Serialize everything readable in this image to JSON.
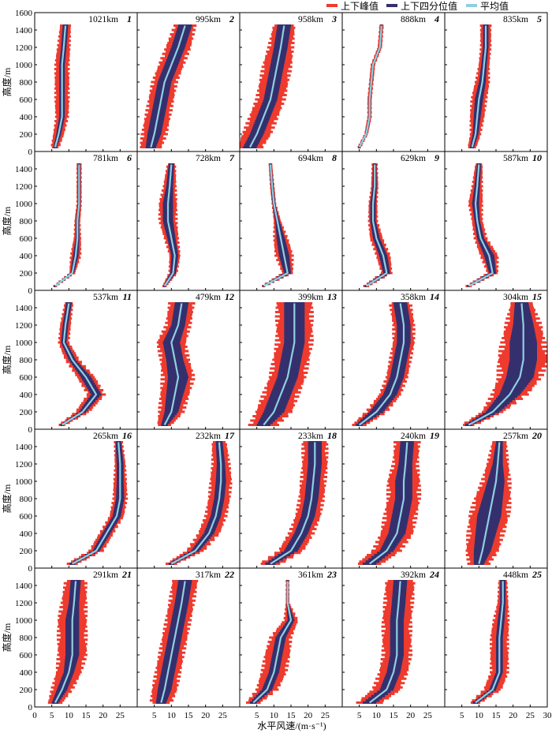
{
  "chart_data": {
    "type": "profile-grid",
    "legend": [
      {
        "key": "peak",
        "label": "上下峰值",
        "color": "#ee3b2e"
      },
      {
        "key": "quartile",
        "label": "上下四分位值",
        "color": "#34306e"
      },
      {
        "key": "mean",
        "label": "平均值",
        "color": "#8fd0e0"
      }
    ],
    "xlabel": "水平风速/(m·s⁻¹)",
    "ylabel": "高度/m",
    "xlim": [
      0,
      30
    ],
    "ylim": [
      0,
      1600
    ],
    "xticks": [
      "0",
      "5",
      "10",
      "15",
      "20",
      "25",
      "5",
      "10",
      "15",
      "20",
      "25",
      "5",
      "10",
      "15",
      "20",
      "25",
      "5",
      "10",
      "15",
      "20",
      "25",
      "5",
      "10",
      "15",
      "20",
      "25",
      "30"
    ],
    "yticks": [
      "0",
      "200",
      "400",
      "600",
      "800",
      "1000",
      "1200",
      "1400",
      "1600"
    ],
    "heights": [
      50,
      200,
      400,
      600,
      800,
      1000,
      1200,
      1450
    ],
    "panels": [
      {
        "id": "1",
        "distance": "1021km",
        "mean": [
          6,
          7,
          8,
          8,
          8,
          8,
          8.5,
          9
        ],
        "q_half": [
          0.5,
          0.7,
          0.8,
          0.8,
          0.8,
          0.8,
          0.8,
          0.8
        ],
        "p_half": [
          1.2,
          1.5,
          1.8,
          2,
          2,
          2,
          1.8,
          1.5
        ]
      },
      {
        "id": "2",
        "distance": "995km",
        "mean": [
          4,
          5,
          6,
          7,
          8,
          10,
          12,
          14
        ],
        "q_half": [
          1.5,
          2,
          2,
          2,
          2,
          2,
          2,
          2
        ],
        "p_half": [
          3,
          3.5,
          3.5,
          3.5,
          3.5,
          3.5,
          3.5,
          3
        ]
      },
      {
        "id": "3",
        "distance": "958km",
        "mean": [
          3,
          5,
          7,
          9,
          10,
          11,
          12,
          13
        ],
        "q_half": [
          2,
          2,
          2,
          2,
          2,
          2,
          2,
          2
        ],
        "p_half": [
          3.5,
          4,
          4,
          4,
          4,
          4,
          3.5,
          3
        ]
      },
      {
        "id": "4",
        "distance": "888km",
        "mean": [
          5,
          7,
          8,
          8,
          8.5,
          9,
          11,
          11.5
        ],
        "q_half": [
          0.3,
          0.3,
          0.3,
          0.3,
          0.3,
          0.3,
          0.3,
          0.3
        ],
        "p_half": [
          0.5,
          0.5,
          0.6,
          0.6,
          0.6,
          0.6,
          0.6,
          0.6
        ]
      },
      {
        "id": "5",
        "distance": "835km",
        "mean": [
          8,
          9,
          9.5,
          10,
          11,
          11.5,
          12,
          12
        ],
        "q_half": [
          0.6,
          0.8,
          1,
          1.2,
          1,
          0.8,
          0.8,
          0.8
        ],
        "p_half": [
          1.2,
          1.5,
          2,
          2.2,
          2,
          1.5,
          1.5,
          1.5
        ]
      },
      {
        "id": "6",
        "distance": "781km",
        "mean": [
          6,
          11,
          12,
          12.5,
          12.5,
          13,
          13,
          13
        ],
        "q_half": [
          0.3,
          0.5,
          0.8,
          0.5,
          0.4,
          0.4,
          0.4,
          0.4
        ],
        "p_half": [
          0.5,
          0.8,
          1.5,
          1,
          0.8,
          0.7,
          0.7,
          0.7
        ]
      },
      {
        "id": "7",
        "distance": "728km",
        "mean": [
          8,
          10.5,
          11,
          10,
          9,
          9,
          9.5,
          10
        ],
        "q_half": [
          0.3,
          0.8,
          1,
          1.2,
          1.5,
          1.5,
          1,
          0.8
        ],
        "p_half": [
          0.6,
          1.2,
          1.5,
          2,
          2.5,
          2.5,
          1.8,
          1.2
        ]
      },
      {
        "id": "8",
        "distance": "694km",
        "mean": [
          7,
          14,
          13,
          12,
          11,
          10,
          9.5,
          9
        ],
        "q_half": [
          0.3,
          1,
          1.5,
          1.2,
          0.6,
          0.4,
          0.4,
          0.3
        ],
        "p_half": [
          0.6,
          1.5,
          2.5,
          2,
          1,
          0.6,
          0.6,
          0.5
        ]
      },
      {
        "id": "9",
        "distance": "629km",
        "mean": [
          7,
          13,
          12,
          10,
          9,
          9,
          9.5,
          9.5
        ],
        "q_half": [
          0.4,
          1,
          1.2,
          1,
          0.8,
          0.8,
          0.6,
          0.5
        ],
        "p_half": [
          0.8,
          1.5,
          2,
          1.8,
          1.3,
          1.2,
          1,
          0.8
        ]
      },
      {
        "id": "10",
        "distance": "587km",
        "mean": [
          7,
          14,
          13,
          10.5,
          9.5,
          9,
          9.5,
          10
        ],
        "q_half": [
          0.4,
          1,
          1.5,
          1,
          0.8,
          1,
          0.8,
          0.6
        ],
        "p_half": [
          0.8,
          1.5,
          2.5,
          1.8,
          1.5,
          2,
          1.5,
          1
        ]
      },
      {
        "id": "11",
        "distance": "537km",
        "mean": [
          8,
          14,
          18,
          15,
          11,
          8.5,
          9,
          10
        ],
        "q_half": [
          0.5,
          1,
          1.5,
          1.5,
          1,
          0.8,
          0.8,
          0.8
        ],
        "p_half": [
          1,
          2,
          2.5,
          2.5,
          2,
          1.5,
          1.5,
          1.2
        ]
      },
      {
        "id": "12",
        "distance": "479km",
        "mean": [
          8,
          10,
          11,
          12,
          11,
          10,
          12,
          13
        ],
        "q_half": [
          1,
          2,
          2.5,
          3,
          2.5,
          2.5,
          2,
          2
        ],
        "p_half": [
          2,
          3.5,
          4,
          4.5,
          4,
          4,
          3.5,
          3.5
        ]
      },
      {
        "id": "13",
        "distance": "399km",
        "mean": [
          7,
          10,
          12,
          14,
          15,
          16,
          16,
          16
        ],
        "q_half": [
          2,
          3,
          3,
          3,
          3,
          3,
          3,
          3
        ],
        "p_half": [
          4,
          5,
          5,
          5,
          5,
          5,
          5,
          5
        ]
      },
      {
        "id": "14",
        "distance": "358km",
        "mean": [
          5,
          10,
          14,
          16,
          17,
          18,
          18,
          17
        ],
        "q_half": [
          1,
          2,
          2,
          2,
          2,
          2,
          2,
          2
        ],
        "p_half": [
          2,
          3,
          3,
          3,
          3,
          3,
          3,
          3
        ]
      },
      {
        "id": "15",
        "distance": "304km",
        "mean": [
          7,
          14,
          19,
          22,
          23,
          23,
          23,
          22.5
        ],
        "q_half": [
          1,
          2,
          3,
          4,
          4,
          4,
          3,
          2
        ],
        "p_half": [
          2,
          3,
          5,
          6,
          7,
          6,
          5,
          3
        ]
      },
      {
        "id": "16",
        "distance": "265km",
        "mean": [
          11,
          18,
          21,
          24,
          25,
          25,
          25,
          24.5
        ],
        "q_half": [
          0.8,
          1,
          1.2,
          1.2,
          1.2,
          1,
          1,
          0.8
        ],
        "p_half": [
          1.5,
          2,
          2,
          2,
          2,
          1.8,
          1.5,
          1.2
        ]
      },
      {
        "id": "17",
        "distance": "232km",
        "mean": [
          10,
          17,
          21,
          23,
          24,
          24.5,
          24.5,
          24
        ],
        "q_half": [
          0.8,
          1.2,
          1.5,
          1.5,
          1.5,
          1.5,
          1.2,
          1
        ],
        "p_half": [
          1.5,
          2.5,
          3,
          3,
          3,
          3,
          2.5,
          2
        ]
      },
      {
        "id": "18",
        "distance": "233km",
        "mean": [
          9,
          15,
          18,
          20,
          21,
          21.5,
          22,
          22
        ],
        "q_half": [
          1.5,
          2,
          2,
          2,
          2,
          2,
          2,
          2
        ],
        "p_half": [
          3,
          3.5,
          3.5,
          3.5,
          3.5,
          3.5,
          3.5,
          3.5
        ]
      },
      {
        "id": "19",
        "distance": "240km",
        "mean": [
          8,
          13,
          16,
          17,
          18,
          18,
          18.5,
          19
        ],
        "q_half": [
          2,
          2,
          2.5,
          2.5,
          2.5,
          2.5,
          2,
          2
        ],
        "p_half": [
          3.5,
          4,
          4.5,
          4.5,
          4.5,
          4.5,
          3.5,
          3.5
        ]
      },
      {
        "id": "20",
        "distance": "257km",
        "mean": [
          10,
          11,
          12,
          13,
          14,
          15,
          15.5,
          16
        ],
        "q_half": [
          1.5,
          2.5,
          3,
          3.5,
          3,
          2.5,
          1.5,
          1
        ],
        "p_half": [
          3,
          4.5,
          5,
          5.5,
          5,
          4,
          3,
          2
        ]
      },
      {
        "id": "21",
        "distance": "291km",
        "mean": [
          6,
          8,
          10,
          11,
          11,
          11,
          11.5,
          12
        ],
        "q_half": [
          1,
          1.5,
          1.5,
          2,
          2,
          2,
          1.5,
          1.5
        ],
        "p_half": [
          2,
          3,
          3.5,
          4,
          4,
          4,
          3.5,
          3
        ]
      },
      {
        "id": "22",
        "distance": "317km",
        "mean": [
          7,
          8,
          9,
          10,
          11,
          12,
          13,
          14
        ],
        "q_half": [
          1.5,
          2,
          2,
          2,
          2,
          2,
          2,
          2
        ],
        "p_half": [
          3,
          3.5,
          3.5,
          3.5,
          3.5,
          3.5,
          3.5,
          3.5
        ]
      },
      {
        "id": "23",
        "distance": "361km",
        "mean": [
          4,
          8,
          10,
          11,
          12,
          15,
          14,
          14
        ],
        "q_half": [
          1,
          1.5,
          1.5,
          1.5,
          1.5,
          1,
          0.3,
          0.3
        ],
        "p_half": [
          2,
          3,
          3.5,
          3.5,
          3,
          2,
          0.5,
          0.5
        ]
      },
      {
        "id": "24",
        "distance": "392km",
        "mean": [
          8,
          13,
          15,
          16,
          16,
          16,
          16.5,
          17
        ],
        "q_half": [
          2,
          2,
          2,
          2,
          2,
          2,
          2,
          2
        ],
        "p_half": [
          3.5,
          4,
          4,
          4,
          4,
          4,
          4,
          4
        ]
      },
      {
        "id": "25",
        "distance": "448km",
        "mean": [
          9,
          14,
          16,
          16,
          16,
          16.5,
          17,
          17
        ],
        "q_half": [
          0.8,
          1,
          1,
          1,
          1,
          1,
          0.8,
          0.8
        ],
        "p_half": [
          1.5,
          2.5,
          2.5,
          2.5,
          2.5,
          2.2,
          1.5,
          1.2
        ]
      }
    ]
  }
}
